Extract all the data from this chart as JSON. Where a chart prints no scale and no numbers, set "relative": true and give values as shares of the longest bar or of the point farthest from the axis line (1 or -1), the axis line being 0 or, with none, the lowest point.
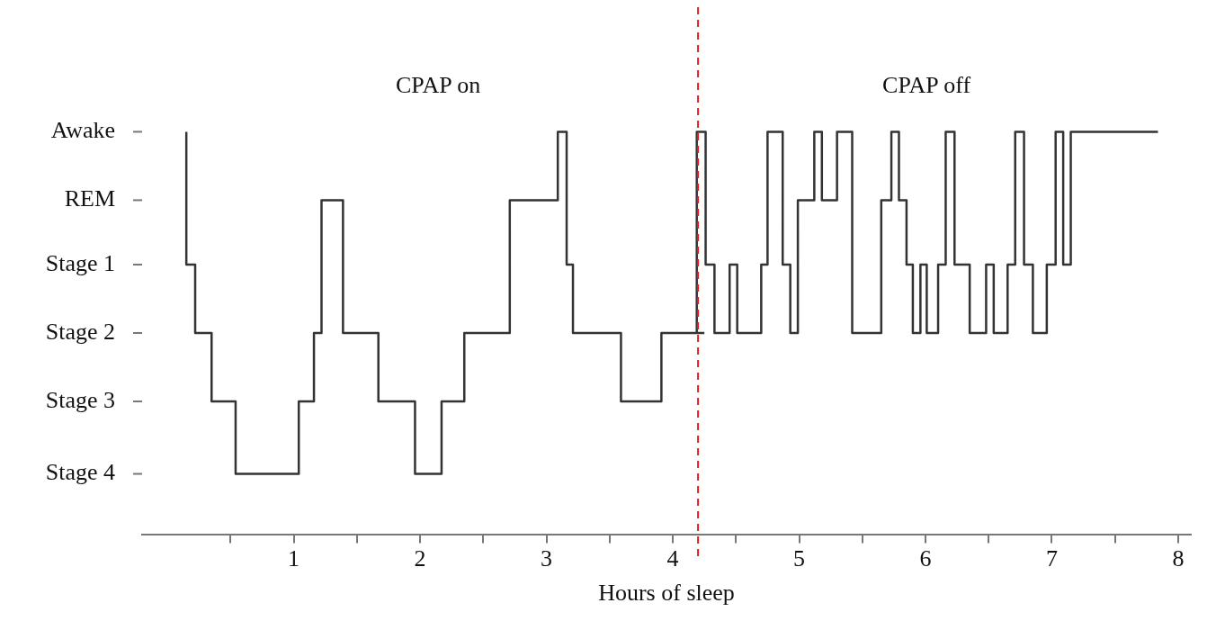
{
  "chart_data": {
    "type": "step",
    "xlabel": "Hours of sleep",
    "relative": true,
    "xlim": [
      -0.2,
      8.1
    ],
    "xticks": [
      {
        "value": 0.5,
        "label": null
      },
      1,
      {
        "value": 1.5,
        "label": null
      },
      2,
      {
        "value": 2.5,
        "label": null
      },
      3,
      {
        "value": 3.5,
        "label": null
      },
      4,
      {
        "value": 4.5,
        "label": null
      },
      5,
      {
        "value": 5.5,
        "label": null
      },
      6,
      {
        "value": 6.5,
        "label": null
      },
      7,
      {
        "value": 7.5,
        "label": null
      },
      8
    ],
    "grid": false,
    "legend": false,
    "marker": "none",
    "line_style": "solid",
    "series": [
      {
        "color": "#333333",
        "x": [
          0.15,
          0.15,
          0.22,
          0.35,
          0.54,
          1.04,
          1.16,
          1.22,
          1.39,
          1.67,
          1.96,
          2.17,
          2.35,
          2.71,
          3.09,
          3.16,
          3.21,
          3.59,
          3.91,
          4.25
        ],
        "values": [
          1,
          0.67,
          0.5,
          0.33,
          0.15,
          0.33,
          0.5,
          0.83,
          0.5,
          0.33,
          0.15,
          0.33,
          0.5,
          0.83,
          1,
          0.67,
          0.5,
          0.33,
          0.5,
          0.5
        ]
      },
      {
        "color": "#333333",
        "x": [
          4.19,
          4.19,
          4.26,
          4.33,
          4.45,
          4.51,
          4.7,
          4.75,
          4.87,
          4.93,
          4.99,
          5.12,
          5.18,
          5.3,
          5.42,
          5.65,
          5.73,
          5.79,
          5.85,
          5.9,
          5.96,
          6.01,
          6.1,
          6.16,
          6.23,
          6.35,
          6.48,
          6.54,
          6.65,
          6.71,
          6.78,
          6.85,
          6.96,
          7.03,
          7.09,
          7.15,
          7.84
        ],
        "values": [
          0.5,
          1,
          0.67,
          0.5,
          0.67,
          0.5,
          0.67,
          1,
          0.67,
          0.5,
          0.83,
          1,
          0.83,
          1,
          0.5,
          0.83,
          1,
          0.83,
          0.67,
          0.5,
          0.67,
          0.5,
          0.67,
          1,
          0.67,
          0.5,
          0.67,
          0.5,
          0.67,
          1,
          0.67,
          0.5,
          0.67,
          1,
          0.67,
          1,
          1
        ]
      }
    ],
    "ref_lines": [
      {
        "axis": "x",
        "value": 4.2,
        "color": "#e02020",
        "line_style": "dashed"
      }
    ],
    "annotations": [
      "CPAP on",
      "CPAP off",
      "Awake",
      "REM",
      "Stage 1",
      "Stage 2",
      "Stage 3",
      "Stage 4"
    ]
  }
}
